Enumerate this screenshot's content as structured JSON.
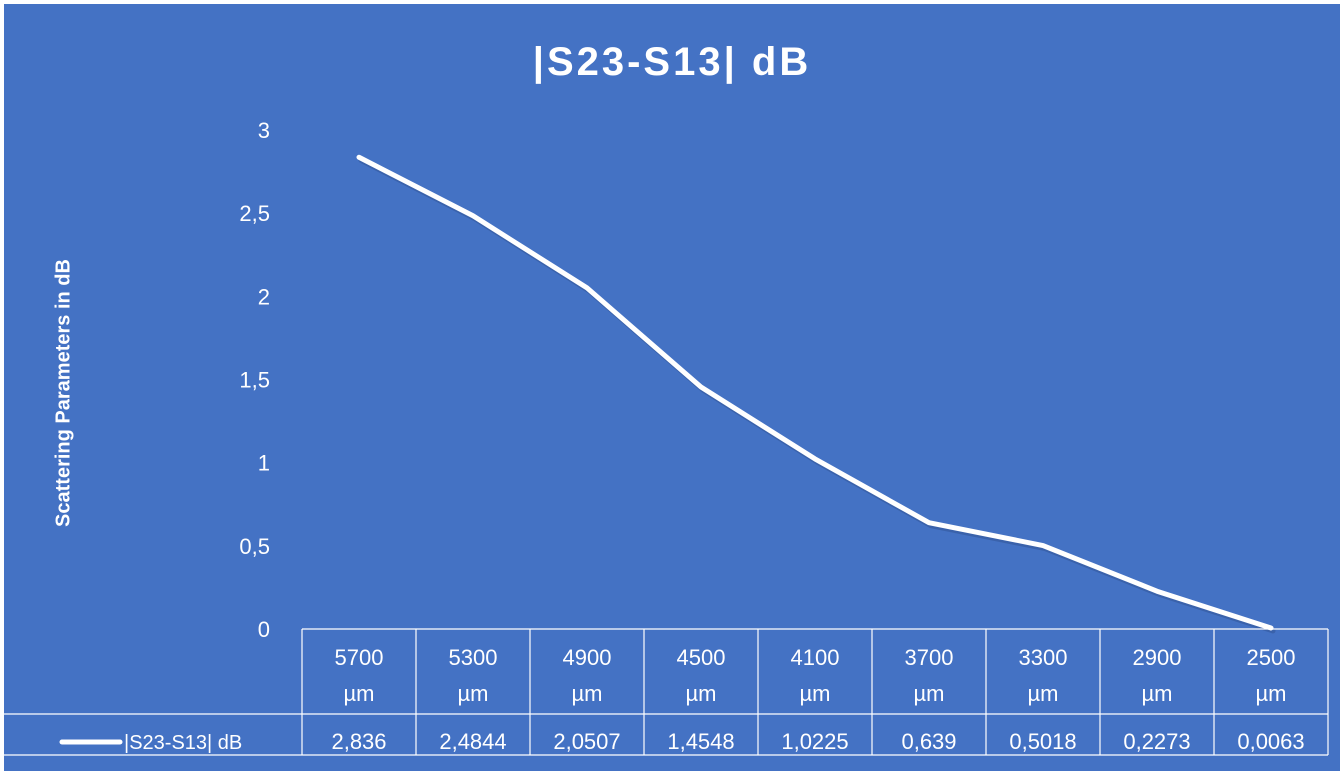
{
  "colors": {
    "background": "#4472c4",
    "series": "#ffffff",
    "table_lines": "#ffffff"
  },
  "chart_data": {
    "type": "line",
    "title": "|S23-S13| dB",
    "ylabel": "Scattering Parameters in dB",
    "xlabel": "",
    "categories": [
      "5700 µm",
      "5300 µm",
      "4900 µm",
      "4500 µm",
      "4100 µm",
      "3700 µm",
      "3300 µm",
      "2900 µm",
      "2500 µm"
    ],
    "category_lines": [
      [
        "5700",
        "µm"
      ],
      [
        "5300",
        "µm"
      ],
      [
        "4900",
        "µm"
      ],
      [
        "4500",
        "µm"
      ],
      [
        "4100",
        "µm"
      ],
      [
        "3700",
        "µm"
      ],
      [
        "3300",
        "µm"
      ],
      [
        "2900",
        "µm"
      ],
      [
        "2500",
        "µm"
      ]
    ],
    "series": [
      {
        "name": "|S23-S13| dB",
        "values": [
          2.836,
          2.4844,
          2.0507,
          1.4548,
          1.0225,
          0.639,
          0.5018,
          0.2273,
          0.0063
        ],
        "value_labels": [
          "2,836",
          "2,4844",
          "2,0507",
          "1,4548",
          "1,0225",
          "0,639",
          "0,5018",
          "0,2273",
          "0,0063"
        ]
      }
    ],
    "ylim": [
      0,
      3
    ],
    "y_ticks": [
      0,
      0.5,
      1,
      1.5,
      2,
      2.5,
      3
    ],
    "y_tick_labels": [
      "0",
      "0,5",
      "1",
      "1,5",
      "2",
      "2,5",
      "3"
    ],
    "drop_lines": true,
    "grid": false,
    "legend": "data-table"
  }
}
